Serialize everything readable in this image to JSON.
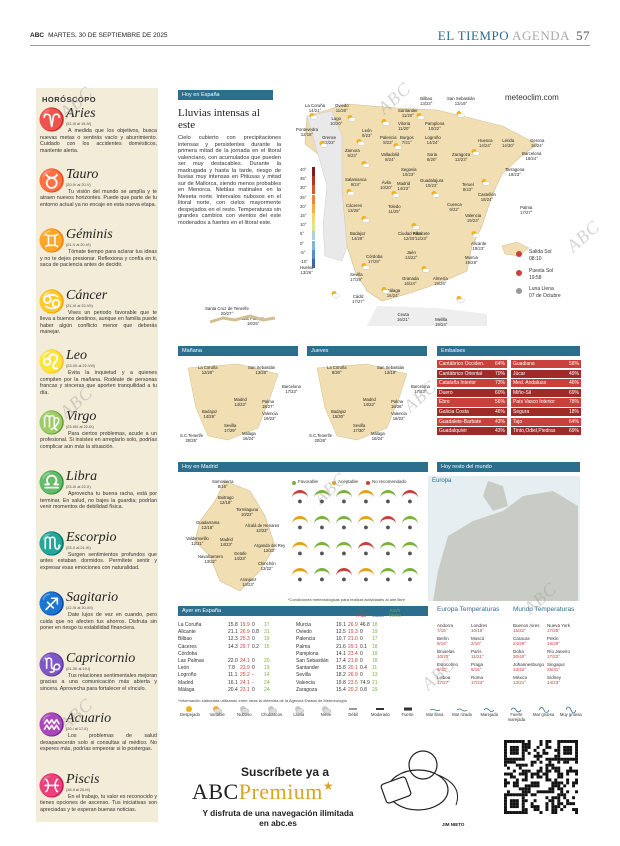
{
  "header": {
    "brand": "ABC",
    "date": "MARTES, 30 DE SEPTIEMBRE DE 2025",
    "section": "EL TIEMPO",
    "subsection": "AGENDA",
    "page": "57"
  },
  "horoscope": {
    "title": "HORÓSCOPO",
    "signs": [
      {
        "name": "Aries",
        "dates": "(21-III al 19-IV)",
        "text": "A medida que los objetivos, busca nuevas metas o sentirás vacío y aburrimiento. Cuidado con los accidentes domésticos, mantente alerta."
      },
      {
        "name": "Tauro",
        "dates": "(20-IV al 20-V)",
        "text": "Tu visión del mundo se amplía y te atraen nuevos horizontes. Puede que parte de tu entorno actual ya no encaje en esta nueva etapa."
      },
      {
        "name": "Géminis",
        "dates": "(21-V al 20-VI)",
        "text": "Tómate tiempo para aclarar tus ideas y no te dejes presionar. Reflexiona y confía en ti, saca de paciencia antes de decidir."
      },
      {
        "name": "Cáncer",
        "dates": "(21-VI al 22-VII)",
        "text": "Vives un periodo favorable que te lleva a buenos destinos, aunque en familia puede haber algún conflicto menor que deberás manejar."
      },
      {
        "name": "Leo",
        "dates": "(23-VII al 22-VIII)",
        "text": "Evita la inquietud y a quienes compiten por la mañana. Rodéate de personas francas y sinceras que aporten tranquilidad a tu día."
      },
      {
        "name": "Virgo",
        "dates": "(23-VIII al 22-IX)",
        "text": "Para ciertos problemas, acude a un profesional. Si insistes en arreglarlo solo, podrías complicar aún más la situación."
      },
      {
        "name": "Libra",
        "dates": "(23-IX al 22-X)",
        "text": "Aprovecha tu buena racha, está por terminar. En salud, no bajes la guardia; podrían venir momentos de debilidad física."
      },
      {
        "name": "Escorpio",
        "dates": "(23-X al 21-XI)",
        "text": "Surgen sentimientos profundos que antes estaban dormidos. Permítete sentir y expresar esas emociones con naturalidad."
      },
      {
        "name": "Sagitario",
        "dates": "(22-XI al 20-XII)",
        "text": "Date lujos de vez en cuando, pero cuida que no afecten tus ahorros. Disfruta sin poner en riesgo tu estabilidad financiera."
      },
      {
        "name": "Capricornio",
        "dates": "(21-XII al 19-I)",
        "text": "Tus relaciones sentimentales mejoran gracias a una comunicación más abierta y sincera. Aprovecha para fortalecer el vínculo."
      },
      {
        "name": "Acuario",
        "dates": "(20-I al 17-II)",
        "text": "Los problemas de salud desaparecerán solo si consultas al médico. No esperes más, podrías empeorar si lo postergas."
      },
      {
        "name": "Piscis",
        "dates": "(18-II al 20-III)",
        "text": "En el trabajo, tu valor es reconocido y tienes opciones de ascenso. Tus iniciativas son apreciadas y te esperan buenas noticias."
      }
    ]
  },
  "today": {
    "tag": "Hoy en España",
    "headline": "Lluvias intensas al este",
    "body": "Cielo cubierto con precipitaciones intensas y persistentes durante la primera mitad de la jornada en el litoral valenciano, con acumulados que pueden ser muy destacables. Durante la madrugada y hasta la tarde, riesgo de lluvias muy intensas en Pitiusas y mitad sur de Mallorca, siendo menos probables en Menorca. Nieblas matinales en la Meseta norte. Intervalos nubosos en el litoral norte, con cielos mayormente despejados en el resto. Temperaturas sin grandes cambios con vientos del este moderados a fuertes en el litoral este.",
    "site": "meteoclim.com",
    "map_cities": [
      {
        "name": "La Coruña",
        "temp": "14/21°"
      },
      {
        "name": "Oviedo",
        "temp": "11/20°"
      },
      {
        "name": "Bilbao",
        "temp": "13/23°"
      },
      {
        "name": "San Sebastián",
        "temp": "13/19°"
      },
      {
        "name": "Lugo",
        "temp": "10/20°"
      },
      {
        "name": "Santander",
        "temp": "11/20°"
      },
      {
        "name": "Vitoria",
        "temp": "11/20°"
      },
      {
        "name": "Pamplona",
        "temp": "10/22°"
      },
      {
        "name": "Pontevedra",
        "temp": "12/18°"
      },
      {
        "name": "Orense",
        "temp": "12/23°"
      },
      {
        "name": "León",
        "temp": "9/23°"
      },
      {
        "name": "Palencia",
        "temp": "8/23°"
      },
      {
        "name": "Burgos",
        "temp": "7/21°"
      },
      {
        "name": "Logroño",
        "temp": "14/24°"
      },
      {
        "name": "Huesca",
        "temp": "14/24°"
      },
      {
        "name": "Lérida",
        "temp": "14/30°"
      },
      {
        "name": "Gerona",
        "temp": "16/24°"
      },
      {
        "name": "Barcelona",
        "temp": "18/24°"
      },
      {
        "name": "Zamora",
        "temp": "9/23°"
      },
      {
        "name": "Valladolid",
        "temp": "8/24°"
      },
      {
        "name": "Soria",
        "temp": "8/20°"
      },
      {
        "name": "Zaragoza",
        "temp": "12/23°"
      },
      {
        "name": "Tarragona",
        "temp": "19/23°"
      },
      {
        "name": "Segovia",
        "temp": "10/23°"
      },
      {
        "name": "Guadalajura",
        "temp": "10/23°"
      },
      {
        "name": "Salamanca",
        "temp": "9/24°"
      },
      {
        "name": "Ávila",
        "temp": "10/20°"
      },
      {
        "name": "Madrid",
        "temp": "14/23°"
      },
      {
        "name": "Teruel",
        "temp": "8/23°"
      },
      {
        "name": "Castellón",
        "temp": "18/24°"
      },
      {
        "name": "Cáceres",
        "temp": "13/28°"
      },
      {
        "name": "Toledo",
        "temp": "11/25°"
      },
      {
        "name": "Cuenca",
        "temp": "9/22°"
      },
      {
        "name": "Valencia",
        "temp": "19/23°"
      },
      {
        "name": "Palma",
        "temp": "17/27°"
      },
      {
        "name": "Badajoz",
        "temp": "14/29°"
      },
      {
        "name": "Ciudad Real",
        "temp": "12/25°"
      },
      {
        "name": "Albacete",
        "temp": "12/23°"
      },
      {
        "name": "Alicante",
        "temp": "19/23°"
      },
      {
        "name": "Córdoba",
        "temp": "17/28°"
      },
      {
        "name": "Jaén",
        "temp": "14/22°"
      },
      {
        "name": "Murcia",
        "temp": "19/28°"
      },
      {
        "name": "Huelva",
        "temp": "13/26°"
      },
      {
        "name": "Sevilla",
        "temp": "17/29°"
      },
      {
        "name": "Granada",
        "temp": "16/24°"
      },
      {
        "name": "Almería",
        "temp": "19/26°"
      },
      {
        "name": "Cádiz",
        "temp": "17/27°"
      },
      {
        "name": "Málaga",
        "temp": "16/24°"
      },
      {
        "name": "Ceuta",
        "temp": "16/21°"
      },
      {
        "name": "Melilla",
        "temp": "19/24°"
      },
      {
        "name": "Santa Cruz de Tenerife",
        "temp": "20/27°"
      },
      {
        "name": "Las Palmas",
        "temp": "18/25°"
      }
    ],
    "sun": {
      "rise_label": "Salida Sol",
      "rise": "08:10",
      "set_label": "Puesta Sol",
      "set": "19:58",
      "moon_label": "Luna Llena",
      "moon": "07 de Octubre"
    },
    "scale_labels": [
      "40°",
      "35°",
      "30°",
      "25°",
      "20°",
      "15°",
      "10°",
      "5°",
      "0°",
      "-5°",
      "-10°"
    ]
  },
  "tomorrow": {
    "tag": "Mañana",
    "cities": [
      {
        "name": "La Coruña",
        "temp": "12/20°"
      },
      {
        "name": "San Sebastián",
        "temp": "13/20°"
      },
      {
        "name": "Barcelona",
        "temp": "17/23°"
      },
      {
        "name": "Madrid",
        "temp": "14/23°"
      },
      {
        "name": "Palma",
        "temp": "18/27°"
      },
      {
        "name": "Badajoz",
        "temp": "14/29°"
      },
      {
        "name": "Valencia",
        "temp": "19/23°"
      },
      {
        "name": "Sevilla",
        "temp": "17/29°"
      },
      {
        "name": "Málaga",
        "temp": "16/24°"
      },
      {
        "name": "S.C.Tenerife",
        "temp": "20/25°"
      }
    ]
  },
  "thursday": {
    "tag": "Jueves",
    "cities": [
      {
        "name": "La Coruña",
        "temp": "8/20°"
      },
      {
        "name": "San Sebastián",
        "temp": "13/19°"
      },
      {
        "name": "Barcelona",
        "temp": "17/23°"
      },
      {
        "name": "Madrid",
        "temp": "14/22°"
      },
      {
        "name": "Palma",
        "temp": "18/26°"
      },
      {
        "name": "Badajoz",
        "temp": "15/30°"
      },
      {
        "name": "Valencia",
        "temp": "18/22°"
      },
      {
        "name": "Sevilla",
        "temp": "17/30°"
      },
      {
        "name": "Málaga",
        "temp": "18/24°"
      },
      {
        "name": "S.C.Tenerife",
        "temp": "20/26°"
      }
    ]
  },
  "reservoirs": {
    "tag": "Embalses",
    "left": [
      {
        "name": "Cantábrico Occiden.",
        "value": "64%"
      },
      {
        "name": "Cantábrico Oriental",
        "value": "70%"
      },
      {
        "name": "Cataluña Interior",
        "value": "73%"
      },
      {
        "name": "Duero",
        "value": "60%"
      },
      {
        "name": "Ebro",
        "value": "56%"
      },
      {
        "name": "Galicia Costa",
        "value": "46%"
      },
      {
        "name": "Guadalete-Barbate",
        "value": "43%"
      },
      {
        "name": "Guadalquivir",
        "value": "43%"
      }
    ],
    "right": [
      {
        "name": "Guadiana",
        "value": "58%"
      },
      {
        "name": "Júcar",
        "value": "49%"
      },
      {
        "name": "Med. Andaluza",
        "value": "46%"
      },
      {
        "name": "Miño-Sil",
        "value": "69%"
      },
      {
        "name": "País Vasco Interior",
        "value": "78%"
      },
      {
        "name": "Segura",
        "value": "18%"
      },
      {
        "name": "Tajo",
        "value": "64%"
      },
      {
        "name": "Tinto,Odiel,Piedras",
        "value": "69%"
      }
    ]
  },
  "madrid": {
    "tag": "Hoy en Madrid",
    "legend": [
      "Favorable",
      "Aceptable",
      "No recomendado"
    ],
    "cities": [
      {
        "name": "Somosierra",
        "temp": "8/16°"
      },
      {
        "name": "Buitrago",
        "temp": "12/18°"
      },
      {
        "name": "Torrelaguna",
        "temp": "10/22°"
      },
      {
        "name": "Guadarrama",
        "temp": "12/18°"
      },
      {
        "name": "Alcalá de Henares",
        "temp": "12/23°"
      },
      {
        "name": "Valdemorillo",
        "temp": "12/21°"
      },
      {
        "name": "Madrid",
        "temp": "14/23°"
      },
      {
        "name": "Arganda del Rey",
        "temp": "12/23°"
      },
      {
        "name": "Navalcarnero",
        "temp": "13/22°"
      },
      {
        "name": "Getafe",
        "temp": "14/23°"
      },
      {
        "name": "Chinchón",
        "temp": "12/22°"
      },
      {
        "name": "Aranjuez",
        "temp": "14/23°"
      }
    ],
    "note": "*Condiciones meteorológicas para realizar actividades al aire libre"
  },
  "world": {
    "tag": "Hoy resto del mundo",
    "map_label": "Europa",
    "europe_title": "Europa Temperaturas",
    "world_title": "Mundo Temperaturas",
    "europe": [
      {
        "name": "Andorra",
        "temp": "7/15°"
      },
      {
        "name": "Londres",
        "temp": "10/18°"
      },
      {
        "name": "Berlín",
        "temp": "9/16°"
      },
      {
        "name": "Moscú",
        "temp": "2/10°"
      },
      {
        "name": "Bruselas",
        "temp": "10/20°"
      },
      {
        "name": "París",
        "temp": "11/21°"
      },
      {
        "name": "Estocolmo",
        "temp": "8/12°"
      },
      {
        "name": "Praga",
        "temp": "5/15°"
      },
      {
        "name": "Lisboa",
        "temp": "17/27°"
      },
      {
        "name": "Roma",
        "temp": "17/24°"
      }
    ],
    "world": [
      {
        "name": "Buenos Aires",
        "temp": "15/22°"
      },
      {
        "name": "Nueva York",
        "temp": "17/25°"
      },
      {
        "name": "Caracas",
        "temp": "24/29°"
      },
      {
        "name": "Pekín",
        "temp": "18/29°"
      },
      {
        "name": "Doha",
        "temp": "30/40°"
      },
      {
        "name": "Río Janeiro",
        "temp": "17/22°"
      },
      {
        "name": "Johannesburgo",
        "temp": "13/22°"
      },
      {
        "name": "Singapur",
        "temp": "25/31°"
      },
      {
        "name": "México",
        "temp": "13/21°"
      },
      {
        "name": "Sídney",
        "temp": "14/23°"
      }
    ]
  },
  "yesterday": {
    "tag": "Ayer en España",
    "headers": [
      "°C Tmin",
      "°C Tmax",
      "l/m² Lluvia",
      "Km/h Viento"
    ],
    "left": [
      {
        "city": "La Coruña",
        "tmin": "15.8",
        "tmax": "19.9",
        "rain": "0",
        "wind": "17"
      },
      {
        "city": "Alicante",
        "tmin": "21.1",
        "tmax": "26.9",
        "rain": "0.8",
        "wind": "31"
      },
      {
        "city": "Bilbao",
        "tmin": "12.3",
        "tmax": "25.3",
        "rain": "0",
        "wind": "19"
      },
      {
        "city": "Cáceres",
        "tmin": "14.3",
        "tmax": "29.7",
        "rain": "0.2",
        "wind": "15"
      },
      {
        "city": "Córdoba",
        "tmin": "",
        "tmax": "",
        "rain": "",
        "wind": ""
      },
      {
        "city": "Las Palmas",
        "tmin": "22.0",
        "tmax": "24.1",
        "rain": "0",
        "wind": "20"
      },
      {
        "city": "León",
        "tmin": "7.8",
        "tmax": "22.9",
        "rain": "0",
        "wind": "19"
      },
      {
        "city": "Logroño",
        "tmin": "11.1",
        "tmax": "25.2",
        "rain": "-",
        "wind": "14"
      },
      {
        "city": "Madrid",
        "tmin": "16.1",
        "tmax": "24.1",
        "rain": "-",
        "wind": "24"
      },
      {
        "city": "Málaga",
        "tmin": "20.4",
        "tmax": "23.1",
        "rain": "0",
        "wind": "24"
      }
    ],
    "right": [
      {
        "city": "Murcia",
        "tmin": "19.1",
        "tmax": "26.9",
        "rain": "46.8",
        "wind": "18"
      },
      {
        "city": "Oviedo",
        "tmin": "12.5",
        "tmax": "19.3",
        "rain": "0",
        "wind": "19"
      },
      {
        "city": "Palencia",
        "tmin": "10.7",
        "tmax": "21.0",
        "rain": "0",
        "wind": "17"
      },
      {
        "city": "Palma",
        "tmin": "21.6",
        "tmax": "29.1",
        "rain": "0.1",
        "wind": "18"
      },
      {
        "city": "Pamplona",
        "tmin": "14.1",
        "tmax": "23.4",
        "rain": "0",
        "wind": "19"
      },
      {
        "city": "San Sebastián",
        "tmin": "17.4",
        "tmax": "21.8",
        "rain": "0",
        "wind": "18"
      },
      {
        "city": "Santander",
        "tmin": "15.8",
        "tmax": "20.1",
        "rain": "0.4",
        "wind": "11"
      },
      {
        "city": "Sevilla",
        "tmin": "18.2",
        "tmax": "26.9",
        "rain": "0",
        "wind": "13"
      },
      {
        "city": "Valencia",
        "tmin": "19.8",
        "tmax": "23.5",
        "rain": "74.9",
        "wind": "21"
      },
      {
        "city": "Zaragoza",
        "tmin": "15.4",
        "tmax": "20.2",
        "rain": "0.8",
        "wind": "29"
      }
    ],
    "note": "*Información elaborada utilizando entre otras la obtenida de la Agencia Estatal de Meteorología"
  },
  "legend": [
    "Despejado",
    "Variable",
    "Nuboso",
    "Chubascos",
    "Lluvia",
    "Nieve",
    "Débil",
    "Moderado",
    "Fuerte",
    "Mar llana",
    "Mar rizada",
    "Marejada",
    "Fuerte marejada",
    "Mar gruesa",
    "Muy gruesa"
  ],
  "ad": {
    "top": "Suscríbete ya a",
    "brand": "ABC",
    "brand2": "Premium",
    "sub": "Y disfruta de una navegación ilimitada en abc.es",
    "signature": "JIM NIETO"
  },
  "watermark": "ABC",
  "colors": {
    "accent": "#2b6e8e",
    "reservoir_red": "#c8413a",
    "reservoir_dark": "#8b1f1f",
    "horoscope_bg": "#f3ecd9"
  }
}
